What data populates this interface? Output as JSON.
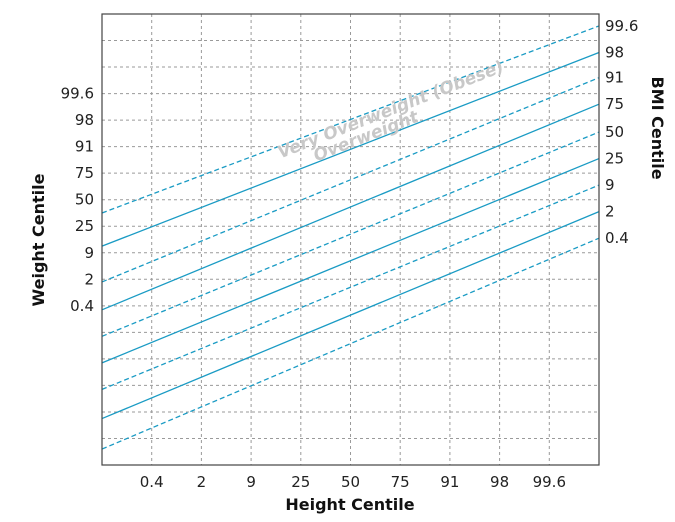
{
  "chart_data": {
    "type": "line",
    "xlabel": "Height Centile",
    "ylabel": "Weight Centile",
    "y2label": "BMI Centile",
    "x_ticks": [
      "0.4",
      "2",
      "9",
      "25",
      "50",
      "75",
      "91",
      "98",
      "99.6"
    ],
    "y_ticks": [
      "0.4",
      "2",
      "9",
      "25",
      "50",
      "75",
      "91",
      "98",
      "99.6"
    ],
    "x_ticks_at": [
      1,
      2,
      3,
      4,
      5,
      6,
      7,
      8,
      9
    ],
    "y_ticks_at": [
      6,
      7,
      8,
      9,
      10,
      11,
      12,
      13,
      14
    ],
    "x_range": [
      0,
      10
    ],
    "y_range": [
      0,
      17
    ],
    "grid": true,
    "grid_style": "dashed",
    "bmi_lines": [
      {
        "label": "99.6",
        "style": "dashed",
        "start": [
          0,
          9.5
        ],
        "end": [
          10,
          16.55
        ]
      },
      {
        "label": "98",
        "style": "solid",
        "start": [
          0,
          8.25
        ],
        "end": [
          10,
          15.55
        ]
      },
      {
        "label": "91",
        "style": "dashed",
        "start": [
          0,
          6.9
        ],
        "end": [
          10,
          14.6
        ]
      },
      {
        "label": "75",
        "style": "solid",
        "start": [
          0,
          5.85
        ],
        "end": [
          10,
          13.6
        ]
      },
      {
        "label": "50",
        "style": "dashed",
        "start": [
          0,
          4.85
        ],
        "end": [
          10,
          12.55
        ]
      },
      {
        "label": "25",
        "style": "solid",
        "start": [
          0,
          3.85
        ],
        "end": [
          10,
          11.55
        ]
      },
      {
        "label": "9",
        "style": "dashed",
        "start": [
          0,
          2.85
        ],
        "end": [
          10,
          10.55
        ]
      },
      {
        "label": "2",
        "style": "solid",
        "start": [
          0,
          1.75
        ],
        "end": [
          10,
          9.55
        ]
      },
      {
        "label": "0.4",
        "style": "dashed",
        "start": [
          0,
          0.6
        ],
        "end": [
          10,
          8.55
        ]
      }
    ],
    "annotations": [
      {
        "text": "Very Overweight (Obese)",
        "x": 5.85,
        "y": 13.2
      },
      {
        "text": "Overweight",
        "x": 5.35,
        "y": 12.2
      }
    ],
    "line_color": "#1a9bc4",
    "grid_color": "#9a9a9a",
    "annotation_color": "#c8c8c8"
  }
}
